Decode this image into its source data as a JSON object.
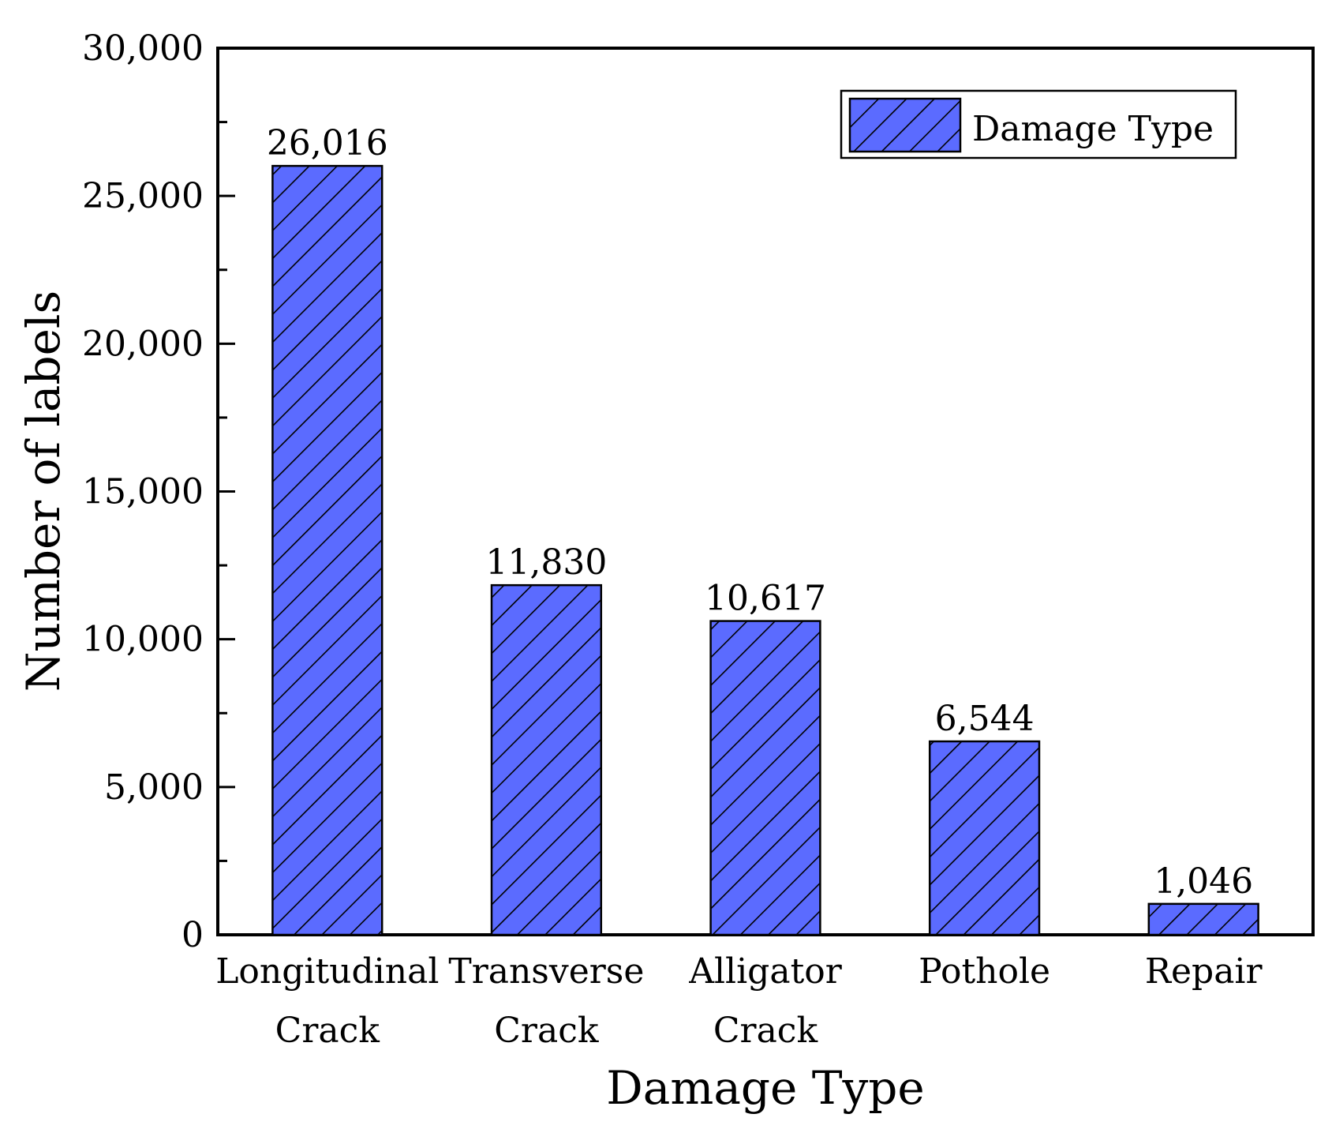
{
  "chart_data": {
    "type": "bar",
    "categories": [
      [
        "Longitudinal",
        "Crack"
      ],
      [
        "Transverse",
        "Crack"
      ],
      [
        "Alligator",
        "Crack"
      ],
      [
        "Pothole"
      ],
      [
        "Repair"
      ]
    ],
    "values": [
      26016,
      11830,
      10617,
      6544,
      1046
    ],
    "value_labels": [
      "26,016",
      "11,830",
      "10,617",
      "6,544",
      "1,046"
    ],
    "xlabel": "Damage Type",
    "ylabel": "Number of labels",
    "ylim": [
      0,
      30000
    ],
    "yticks": [
      0,
      5000,
      10000,
      15000,
      20000,
      25000,
      30000
    ],
    "ytick_labels": [
      "0",
      "5,000",
      "10,000",
      "15,000",
      "20,000",
      "25,000",
      "30,000"
    ],
    "legend": {
      "label": "Damage Type",
      "placement": "top-right"
    },
    "grid": false,
    "bar_color": "#5b6bff",
    "hatch": "diagonal"
  }
}
